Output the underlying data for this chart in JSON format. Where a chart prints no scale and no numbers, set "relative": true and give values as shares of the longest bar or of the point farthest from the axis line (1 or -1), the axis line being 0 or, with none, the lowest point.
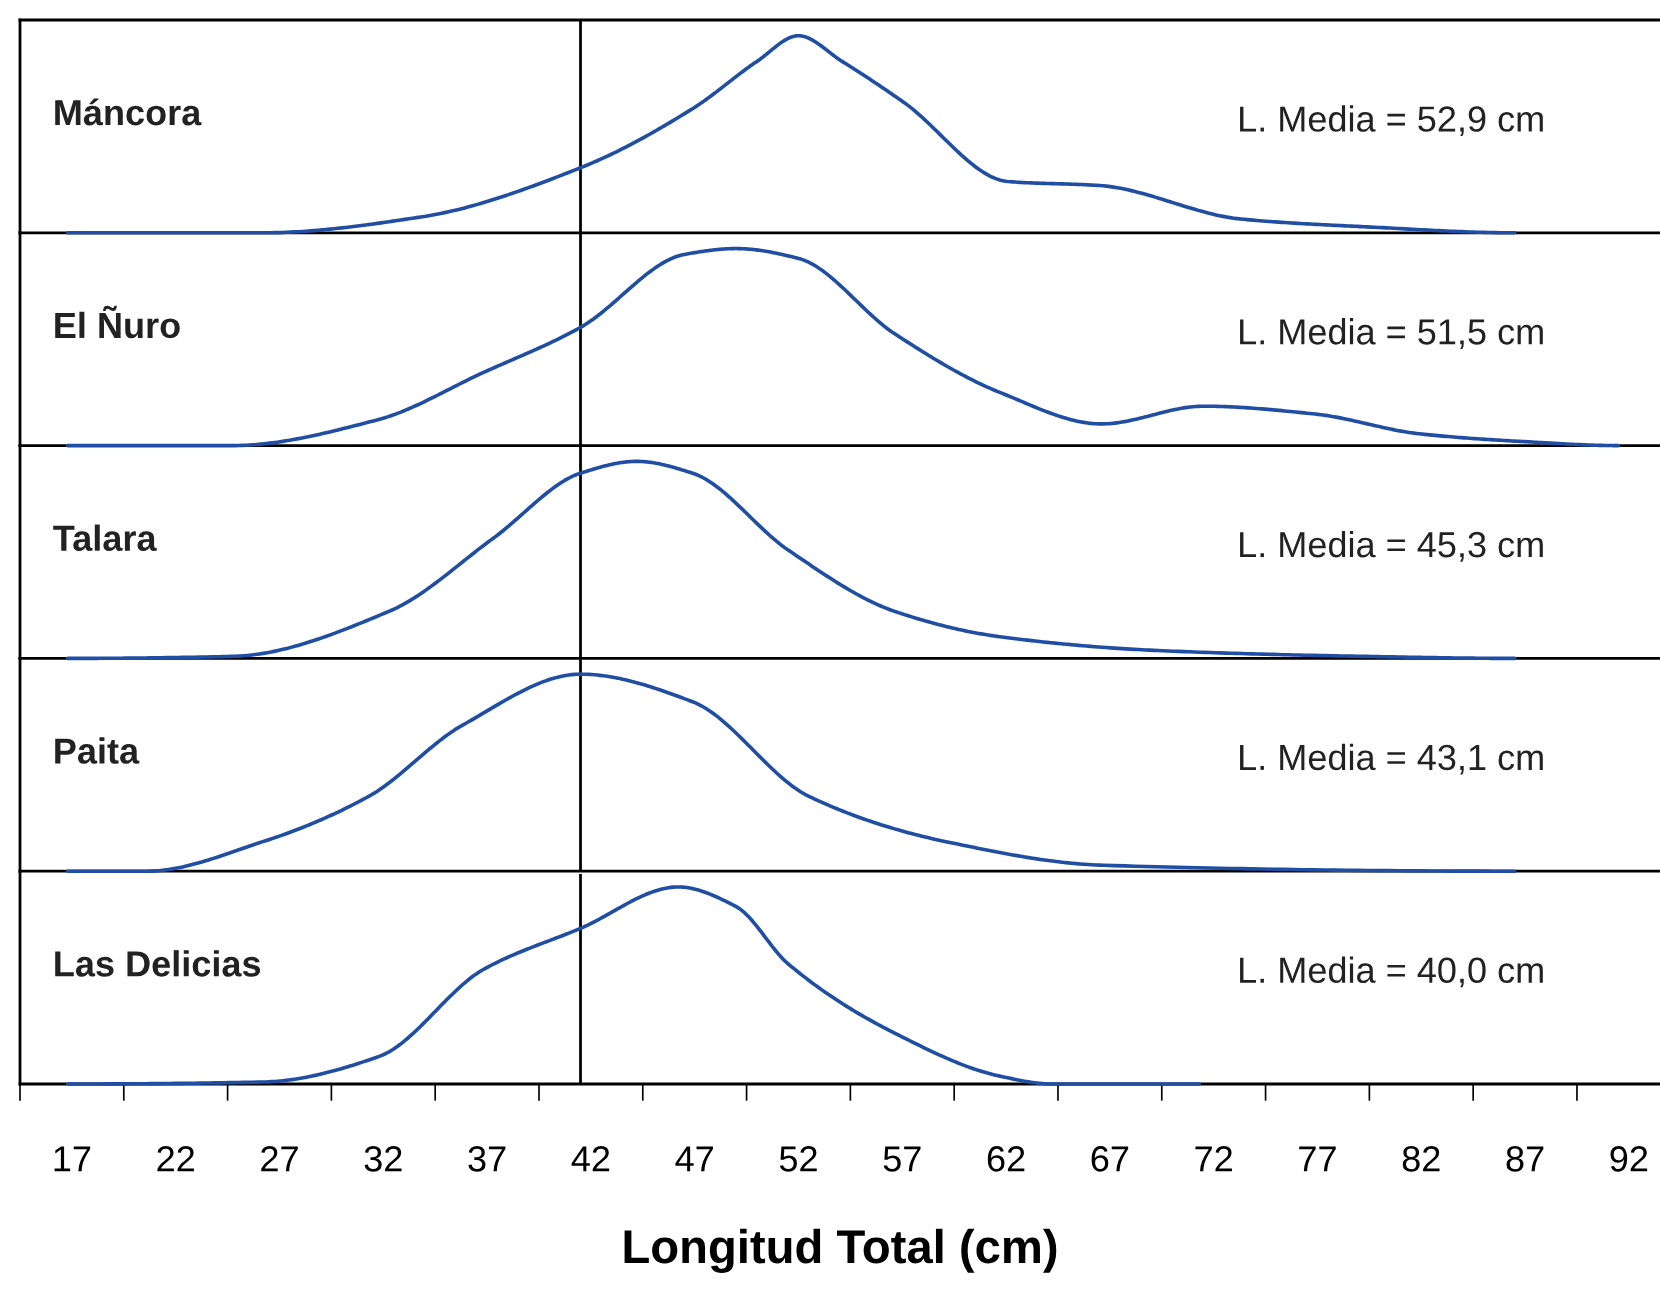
{
  "chart_data": [
    {
      "type": "line",
      "relative": true,
      "xlim": [
        14.5,
        93.5
      ],
      "tick_labels": false,
      "marker": "none",
      "line_style": "solid",
      "grid": false,
      "legend": false,
      "series": [
        {
          "name": "Máncora",
          "color": "#1f4ea3",
          "x": [
            16.8,
            26.2,
            33.8,
            41.5,
            46.9,
            50.0,
            52.0,
            54.1,
            57.1,
            62.1,
            66.5,
            73.3,
            79.4,
            86.5
          ],
          "values": [
            0,
            0.0,
            0.08,
            0.33,
            0.63,
            0.87,
            1,
            0.87,
            0.66,
            0.26,
            0.24,
            0.07,
            0.03,
            0
          ]
        }
      ],
      "annotations": [
        "L. Media = 52,9 cm"
      ],
      "ref_lines": [
        {
          "axis": "x",
          "value": 41.5,
          "color": "#000000"
        }
      ]
    },
    {
      "type": "line",
      "relative": true,
      "xlim": [
        14.5,
        93.5
      ],
      "tick_labels": false,
      "marker": "none",
      "line_style": "solid",
      "grid": false,
      "legend": false,
      "series": [
        {
          "name": "El Ñuro",
          "color": "#1f4ea3",
          "x": [
            16.8,
            24.7,
            31.7,
            36.8,
            41.5,
            46.5,
            49.0,
            52.0,
            56.6,
            61.7,
            66.6,
            71.5,
            76.9,
            81.9,
            87.0,
            91.5
          ],
          "values": [
            0,
            0,
            0.13,
            0.37,
            0.6,
            0.97,
            1,
            0.95,
            0.57,
            0.27,
            0.11,
            0.2,
            0.16,
            0.06,
            0.02,
            0
          ]
        }
      ],
      "annotations": [
        "L. Media = 51,5 cm"
      ],
      "ref_lines": [
        {
          "axis": "x",
          "value": 41.5,
          "color": "#000000"
        }
      ]
    },
    {
      "type": "line",
      "relative": true,
      "xlim": [
        14.5,
        93.5
      ],
      "tick_labels": false,
      "marker": "none",
      "line_style": "solid",
      "grid": false,
      "legend": false,
      "series": [
        {
          "name": "Talara",
          "color": "#1f4ea3",
          "x": [
            16.8,
            24.7,
            32.3,
            37.3,
            41.5,
            44.2,
            46.9,
            51.5,
            56.6,
            61.7,
            69.3,
            79.4,
            86.5
          ],
          "values": [
            0,
            0.01,
            0.24,
            0.61,
            0.94,
            1,
            0.94,
            0.55,
            0.24,
            0.11,
            0.04,
            0.01,
            0
          ]
        }
      ],
      "annotations": [
        "L. Media = 45,3 cm"
      ],
      "ref_lines": [
        {
          "axis": "x",
          "value": 41.5,
          "color": "#000000"
        }
      ]
    },
    {
      "type": "line",
      "relative": true,
      "xlim": [
        14.5,
        93.5
      ],
      "tick_labels": false,
      "marker": "none",
      "line_style": "solid",
      "grid": false,
      "legend": false,
      "series": [
        {
          "name": "Paita",
          "color": "#1f4ea3",
          "x": [
            16.8,
            20.6,
            26.2,
            31.3,
            35.8,
            41.5,
            46.9,
            52.5,
            59.1,
            66.7,
            86.5
          ],
          "values": [
            0,
            0,
            0.15,
            0.38,
            0.74,
            1,
            0.86,
            0.38,
            0.15,
            0.03,
            0
          ]
        }
      ],
      "annotations": [
        "L. Media = 43,1 cm"
      ],
      "ref_lines": [
        {
          "axis": "x",
          "value": 41.5,
          "color": "#000000"
        }
      ]
    },
    {
      "type": "line",
      "relative": true,
      "xlim": [
        14.5,
        93.5
      ],
      "tick_labels": "x",
      "marker": "none",
      "line_style": "solid",
      "grid": false,
      "legend": false,
      "xticks": [
        {
          "value": 14.5,
          "label": null
        },
        17,
        {
          "value": 19.5,
          "label": null
        },
        22,
        {
          "value": 24.5,
          "label": null
        },
        27,
        {
          "value": 29.5,
          "label": null
        },
        32,
        {
          "value": 34.5,
          "label": null
        },
        37,
        {
          "value": 39.5,
          "label": null
        },
        42,
        {
          "value": 44.5,
          "label": null
        },
        47,
        {
          "value": 49.5,
          "label": null
        },
        52,
        {
          "value": 54.5,
          "label": null
        },
        57,
        {
          "value": 59.5,
          "label": null
        },
        62,
        {
          "value": 64.5,
          "label": null
        },
        67,
        {
          "value": 69.5,
          "label": null
        },
        72,
        {
          "value": 74.5,
          "label": null
        },
        77,
        {
          "value": 79.5,
          "label": null
        },
        82,
        {
          "value": 84.5,
          "label": null
        },
        87,
        {
          "value": 89.5,
          "label": null
        },
        92
      ],
      "xlabel": "Longitud Total (cm)",
      "series": [
        {
          "name": "Las Delicias",
          "color": "#1f4ea3",
          "x": [
            16.8,
            26.2,
            31.8,
            36.8,
            41.5,
            46.2,
            49.0,
            51.5,
            56.6,
            61.7,
            64.2,
            71.3
          ],
          "values": [
            0,
            0.01,
            0.14,
            0.58,
            0.79,
            1,
            0.9,
            0.61,
            0.26,
            0.04,
            0,
            0
          ]
        }
      ],
      "annotations": [
        "L. Media = 40,0 cm"
      ],
      "ref_lines": [
        {
          "axis": "x",
          "value": 41.5,
          "color": "#000000"
        }
      ]
    }
  ]
}
